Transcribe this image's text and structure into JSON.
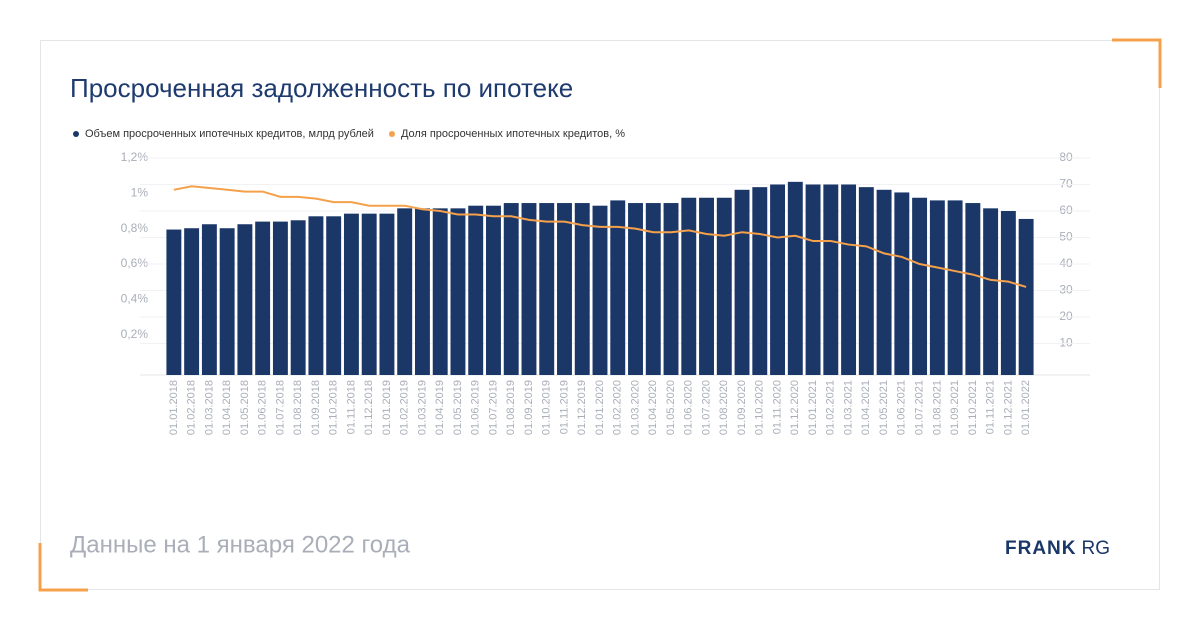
{
  "chart_data": {
    "type": "bar-line",
    "title": "Просроченная задолженность по ипотеке",
    "footer": "Данные на 1 января 2022 года",
    "brand": {
      "bold": "FRANK",
      "light": "RG"
    },
    "categories": [
      "01.01.2018",
      "01.02.2018",
      "01.03.2018",
      "01.04.2018",
      "01.05.2018",
      "01.06.2018",
      "01.07.2018",
      "01.08.2018",
      "01.09.2018",
      "01.10.2018",
      "01.11.2018",
      "01.12.2018",
      "01.01.2019",
      "01.02.2019",
      "01.03.2019",
      "01.04.2019",
      "01.05.2019",
      "01.06.2019",
      "01.07.2019",
      "01.08.2019",
      "01.09.2019",
      "01.10.2019",
      "01.11.2019",
      "01.12.2019",
      "01.01.2020",
      "01.02.2020",
      "01.03.2020",
      "01.04.2020",
      "01.05.2020",
      "01.06.2020",
      "01.07.2020",
      "01.08.2020",
      "01.09.2020",
      "01.10.2020",
      "01.11.2020",
      "01.12.2020",
      "01.01.2021",
      "01.02.2021",
      "01.03.2021",
      "01.04.2021",
      "01.05.2021",
      "01.06.2021",
      "01.07.2021",
      "01.08.2021",
      "01.09.2021",
      "01.10.2021",
      "01.11.2021",
      "01.12.2021",
      "01.01.2022"
    ],
    "series": [
      {
        "name": "Объем просроченных ипотечных кредитов, млрд рублей",
        "color": "#1b3768",
        "kind": "bar",
        "axis": "y2",
        "values": [
          53,
          53.5,
          55,
          53.5,
          55,
          56,
          56,
          56.5,
          58,
          58,
          59,
          59,
          59,
          61,
          61,
          61,
          61,
          62,
          62,
          63,
          63,
          63,
          63,
          63,
          62,
          64,
          63,
          63,
          63,
          65,
          65,
          65,
          68,
          69,
          70,
          71,
          70,
          70,
          70,
          69,
          68,
          67,
          65,
          64,
          64,
          63,
          61,
          60,
          57
        ]
      },
      {
        "name": "Доля просроченных ипотечных кредитов, %",
        "color": "#f5a04a",
        "kind": "line",
        "values": [
          1.02,
          1.04,
          1.03,
          1.02,
          1.01,
          1.01,
          0.98,
          0.98,
          0.97,
          0.95,
          0.95,
          0.93,
          0.93,
          0.93,
          0.91,
          0.9,
          0.88,
          0.88,
          0.87,
          0.87,
          0.85,
          0.84,
          0.84,
          0.82,
          0.81,
          0.81,
          0.8,
          0.78,
          0.78,
          0.79,
          0.77,
          0.76,
          0.78,
          0.77,
          0.75,
          0.76,
          0.73,
          0.73,
          0.71,
          0.7,
          0.66,
          0.64,
          0.6,
          0.58,
          0.56,
          0.54,
          0.51,
          0.5,
          0.47
        ]
      }
    ],
    "ylim": [
      0,
      1.2
    ],
    "yticks": [
      {
        "value": 0.2,
        "label": "0,2%"
      },
      {
        "value": 0.4,
        "label": "0,4%"
      },
      {
        "value": 0.6,
        "label": "0,6%"
      },
      {
        "value": 0.8,
        "label": "0,8%"
      },
      {
        "value": 1,
        "label": "1%"
      },
      {
        "value": 1.2,
        "label": "1,2%"
      }
    ],
    "y2lim": [
      0,
      80
    ],
    "y2ticks": [
      10,
      20,
      30,
      40,
      50,
      60,
      70,
      80
    ],
    "grid": true
  }
}
